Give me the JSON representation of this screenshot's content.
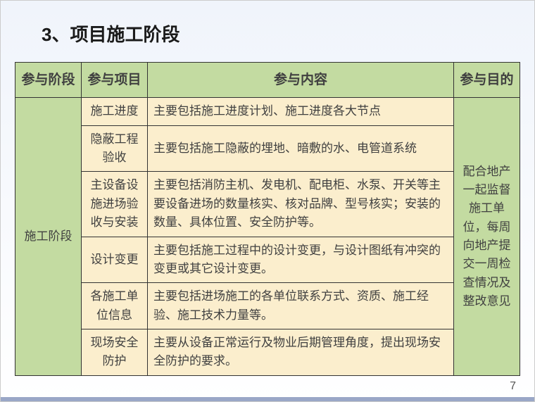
{
  "title": "3、项目施工阶段",
  "headers": {
    "stage": "参与阶段",
    "item": "参与项目",
    "content": "参与内容",
    "goal": "参与目的"
  },
  "stage": "施工阶段",
  "goal": "配合地产一起监督施工单位，每周向地产提交一周检查情况及整改意见",
  "rows": [
    {
      "item": "施工进度",
      "content": "主要包括施工进度计划、施工进度各大节点"
    },
    {
      "item": "隐蔽工程验收",
      "content": "主要包括施工隐蔽的埋地、暗敷的水、电管道系统"
    },
    {
      "item": "主设备设施进场验收与安装",
      "content": "主要包括消防主机、发电机、配电柜、水泵、开关等主要设备进场的数量核实、核对品牌、型号核实；安装的数量、具体位置、安全防护等。"
    },
    {
      "item": "设计变更",
      "content": "主要包括施工过程中的设计变更，与设计图纸有冲突的变更或其它设计变更。"
    },
    {
      "item": "各施工单位信息",
      "content": "主要包括进场施工的各单位联系方式、资质、施工经验、施工技术力量等。"
    },
    {
      "item": "现场安全防护",
      "content": "主要从设备正常运行及物业后期管理角度，提出现场安全防护的要求。"
    }
  ],
  "pageNumber": "7",
  "colors": {
    "headerBg": "#c3dba1",
    "cellBg": "#fbeecd",
    "border": "#333333",
    "pageBgTop": "#f0f4fb",
    "pageBgBottom": "#ffffff"
  },
  "fontSizes": {
    "title": 26,
    "header": 19,
    "cell": 17,
    "pageNum": 16
  }
}
